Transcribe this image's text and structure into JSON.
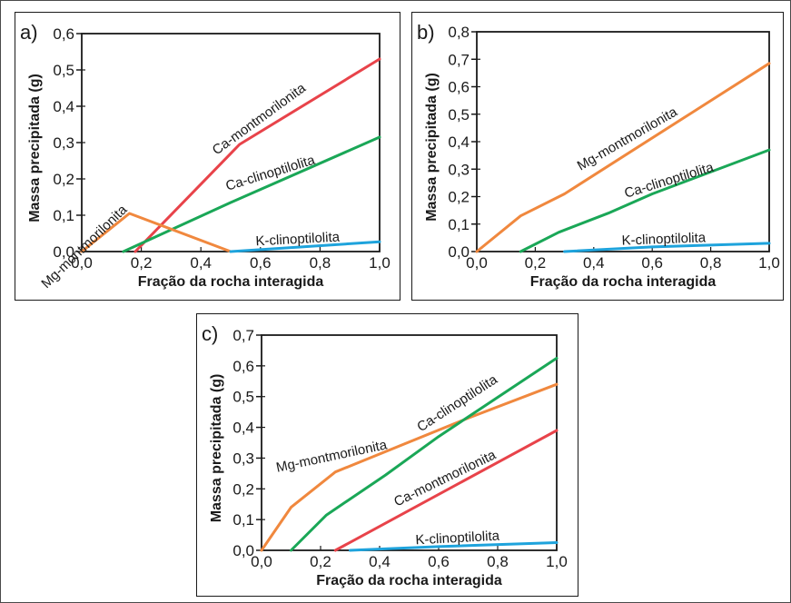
{
  "colors": {
    "frame": "#1a1a1a",
    "text": "#1a1a1a",
    "ca_montmorilonita": "#e8434a",
    "ca_clinoptilolita": "#1aa757",
    "mg_montmorilonita": "#f0883e",
    "k_clinoptilolita": "#1ea3dc"
  },
  "chart_data": [
    {
      "type": "line",
      "panel_label": "a)",
      "xlabel": "Fração da rocha interagida",
      "ylabel": "Massa precipitada (g)",
      "xlim": [
        0,
        1
      ],
      "ylim": [
        0,
        0.6
      ],
      "xticks": [
        "0,0",
        "0,2",
        "0,4",
        "0,6",
        "0,8",
        "1,0"
      ],
      "yticks": [
        "0,0",
        "0,1",
        "0,2",
        "0,3",
        "0,4",
        "0,5",
        "0,6"
      ],
      "series": [
        {
          "name": "Ca-montmorilonita",
          "color": "#e8434a",
          "points": [
            [
              0.18,
              0.0
            ],
            [
              0.53,
              0.295
            ],
            [
              1.0,
              0.53
            ]
          ]
        },
        {
          "name": "Ca-clinoptilolita",
          "color": "#1aa757",
          "points": [
            [
              0.14,
              0.0
            ],
            [
              0.5,
              0.135
            ],
            [
              1.0,
              0.315
            ]
          ]
        },
        {
          "name": "Mg-montmorilonita",
          "color": "#f0883e",
          "points": [
            [
              0.0,
              0.0
            ],
            [
              0.16,
              0.105
            ],
            [
              0.5,
              0.0
            ]
          ]
        },
        {
          "name": "K-clinoptilolita",
          "color": "#1ea3dc",
          "points": [
            [
              0.5,
              0.0
            ],
            [
              1.0,
              0.027
            ]
          ]
        }
      ]
    },
    {
      "type": "line",
      "panel_label": "b)",
      "xlabel": "Fração da rocha interagida",
      "ylabel": "Massa precipitada (g)",
      "xlim": [
        0,
        1
      ],
      "ylim": [
        0,
        0.8
      ],
      "xticks": [
        "0,0",
        "0,2",
        "0,4",
        "0,6",
        "0,8",
        "1,0"
      ],
      "yticks": [
        "0,0",
        "0,1",
        "0,2",
        "0,3",
        "0,4",
        "0,5",
        "0,6",
        "0,7",
        "0,8"
      ],
      "series": [
        {
          "name": "Mg-montmorilonita",
          "color": "#f0883e",
          "points": [
            [
              0.0,
              0.0
            ],
            [
              0.15,
              0.13
            ],
            [
              0.3,
              0.21
            ],
            [
              1.0,
              0.685
            ]
          ]
        },
        {
          "name": "Ca-clinoptilolita",
          "color": "#1aa757",
          "points": [
            [
              0.15,
              0.0
            ],
            [
              0.28,
              0.07
            ],
            [
              0.45,
              0.14
            ],
            [
              0.6,
              0.21
            ],
            [
              1.0,
              0.37
            ]
          ]
        },
        {
          "name": "K-clinoptilolita",
          "color": "#1ea3dc",
          "points": [
            [
              0.3,
              0.0
            ],
            [
              0.6,
              0.017
            ],
            [
              1.0,
              0.03
            ]
          ]
        }
      ]
    },
    {
      "type": "line",
      "panel_label": "c)",
      "xlabel": "Fração da rocha interagida",
      "ylabel": "Massa precipitada (g)",
      "xlim": [
        0,
        1
      ],
      "ylim": [
        0,
        0.7
      ],
      "xticks": [
        "0,0",
        "0,2",
        "0,4",
        "0,6",
        "0,8",
        "1,0"
      ],
      "yticks": [
        "0,0",
        "0,1",
        "0,2",
        "0,3",
        "0,4",
        "0,5",
        "0,6",
        "0,7"
      ],
      "series": [
        {
          "name": "Mg-montmorilonita",
          "color": "#f0883e",
          "points": [
            [
              0.0,
              0.0
            ],
            [
              0.1,
              0.14
            ],
            [
              0.25,
              0.255
            ],
            [
              0.7,
              0.43
            ],
            [
              1.0,
              0.54
            ]
          ]
        },
        {
          "name": "Ca-clinoptilolita",
          "color": "#1aa757",
          "points": [
            [
              0.1,
              0.0
            ],
            [
              0.22,
              0.115
            ],
            [
              0.42,
              0.245
            ],
            [
              0.6,
              0.37
            ],
            [
              1.0,
              0.625
            ]
          ]
        },
        {
          "name": "Ca-montmorilonita",
          "color": "#e8434a",
          "points": [
            [
              0.25,
              0.0
            ],
            [
              1.0,
              0.39
            ]
          ]
        },
        {
          "name": "K-clinoptilolita",
          "color": "#1ea3dc",
          "points": [
            [
              0.3,
              0.0
            ],
            [
              0.6,
              0.012
            ],
            [
              1.0,
              0.025
            ]
          ]
        }
      ]
    }
  ]
}
